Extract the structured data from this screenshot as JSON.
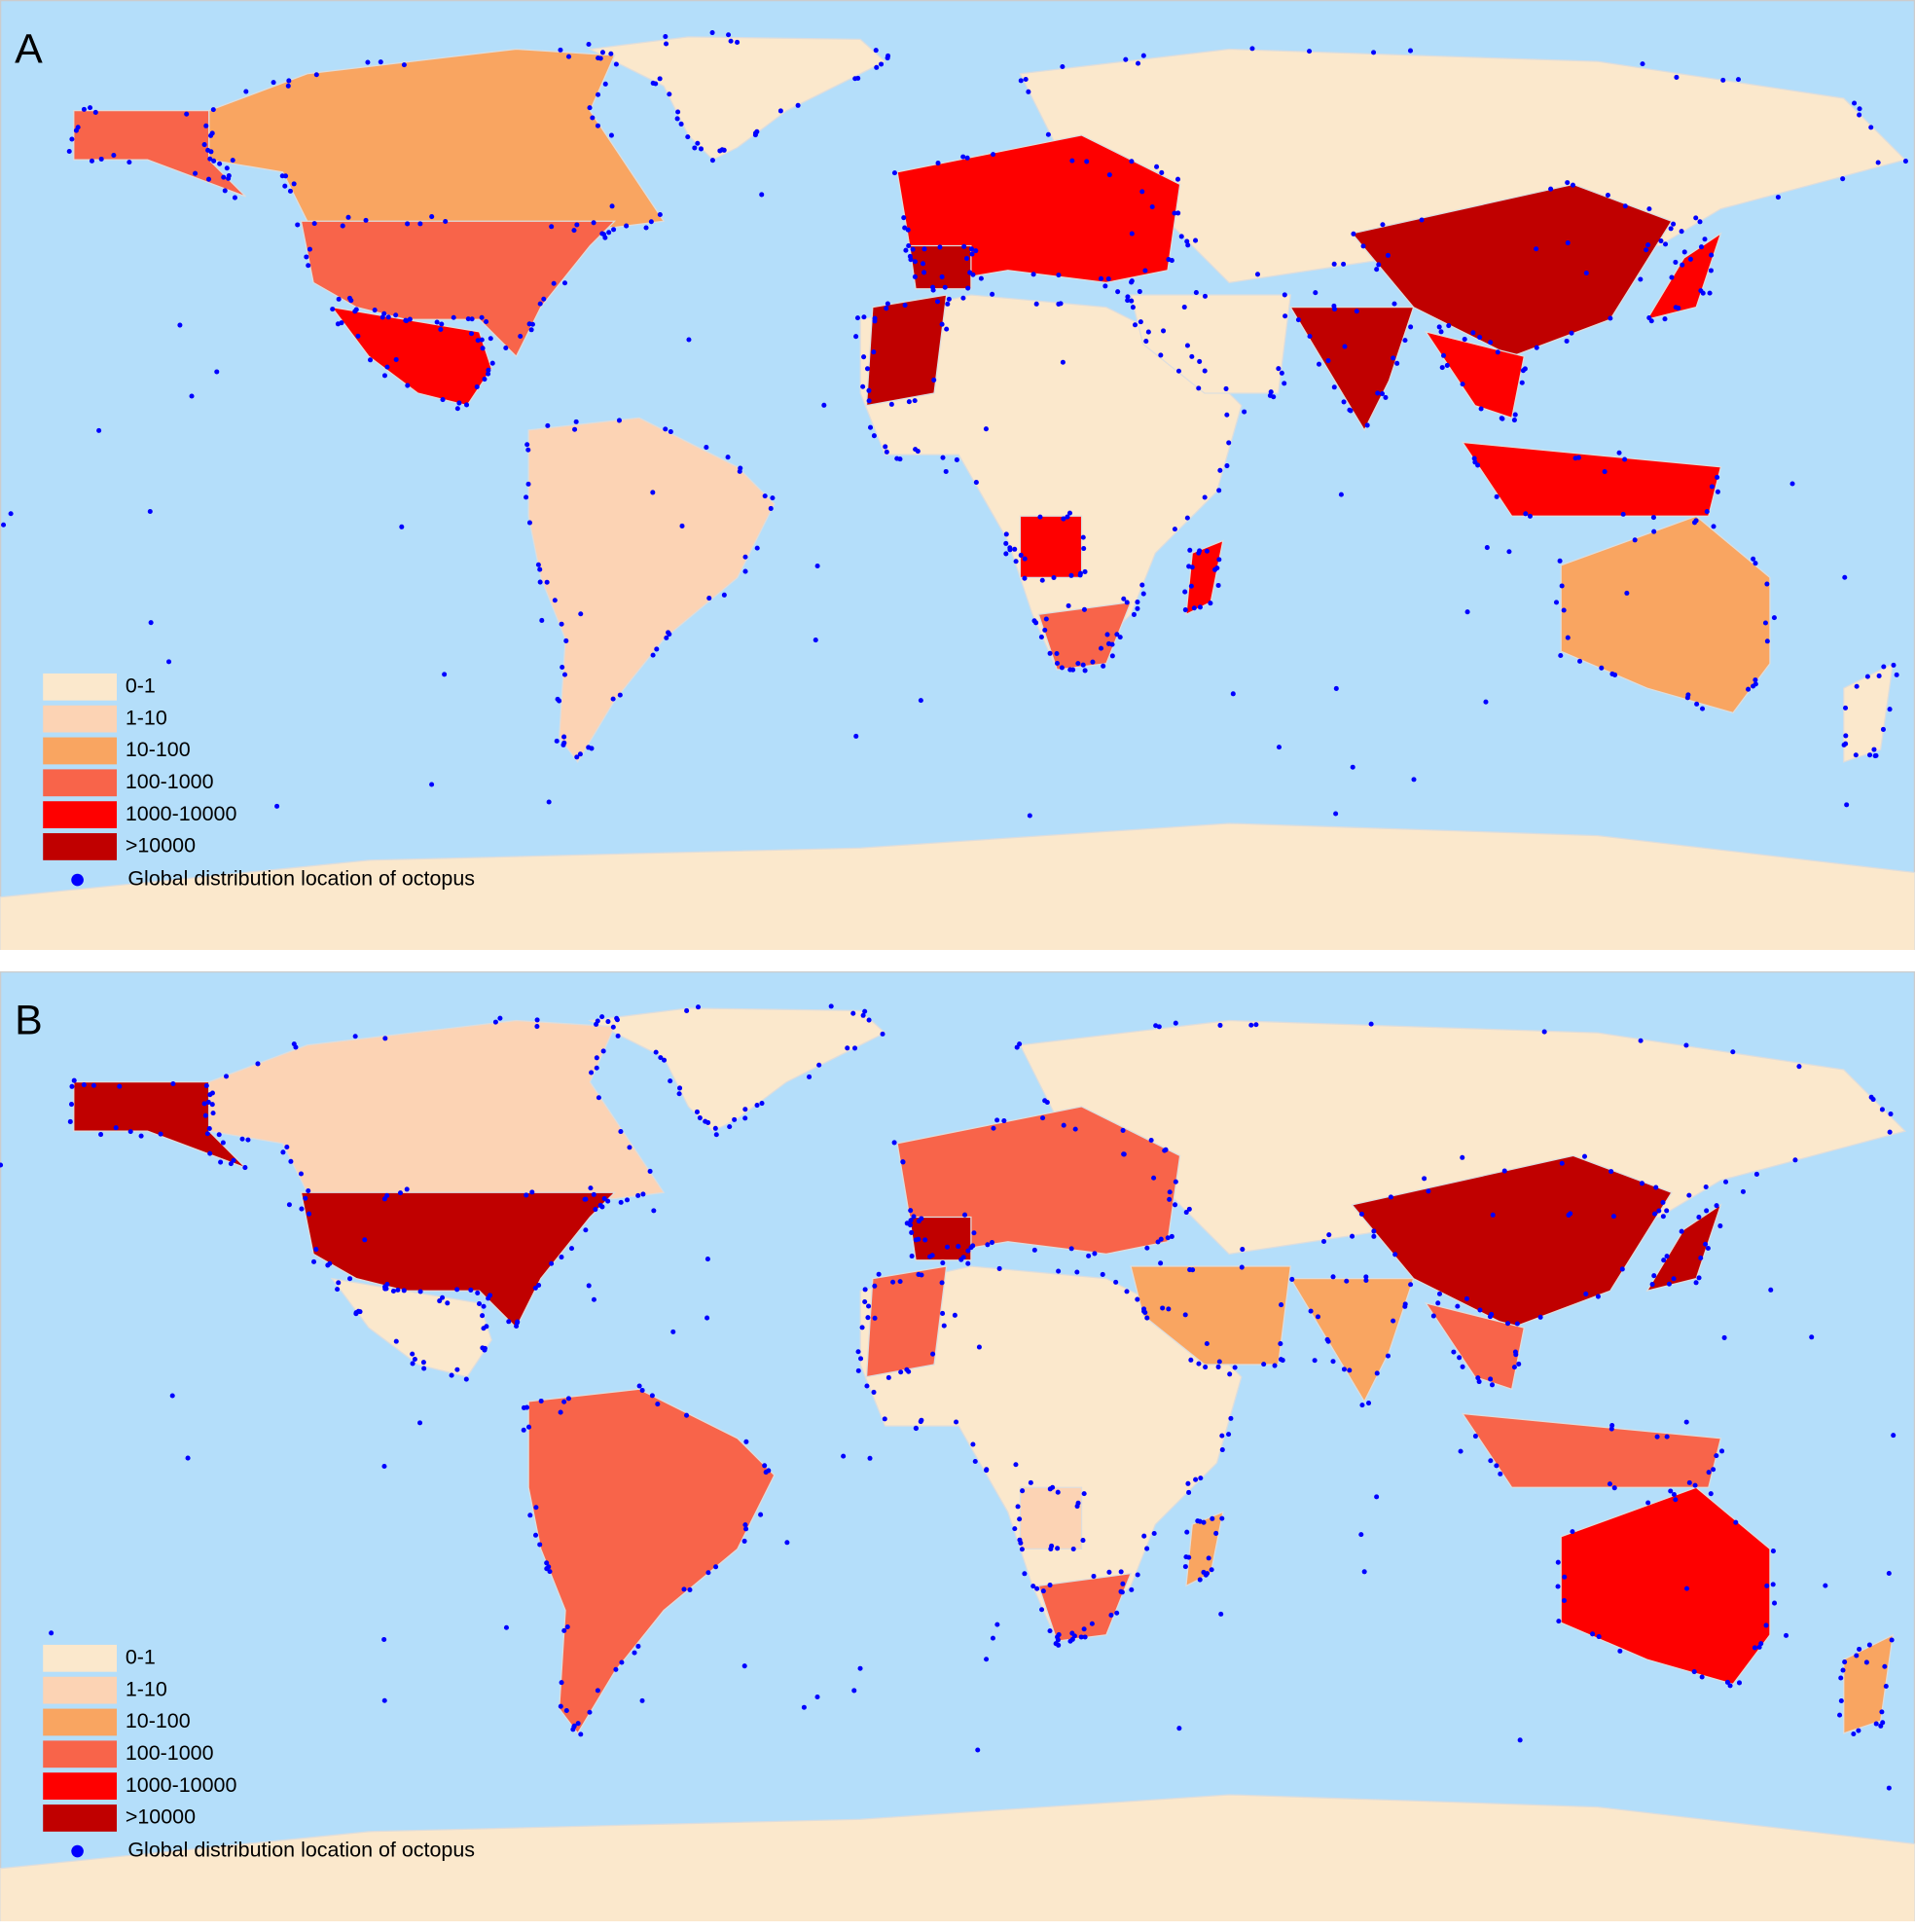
{
  "panels": [
    {
      "label": "A"
    },
    {
      "label": "B"
    }
  ],
  "legend": {
    "classes": [
      {
        "label": "0-1",
        "color": "#fbe8cc"
      },
      {
        "label": "1-10",
        "color": "#fcd3b4"
      },
      {
        "label": "10-100",
        "color": "#f9a561"
      },
      {
        "label": "100-1000",
        "color": "#f8644a"
      },
      {
        "label": "1000-10000",
        "color": "#fe0000"
      },
      {
        "label": ">10000",
        "color": "#c00000"
      }
    ],
    "points": {
      "label": "Global distribution location of octopus",
      "color": "#0000ff"
    }
  }
}
